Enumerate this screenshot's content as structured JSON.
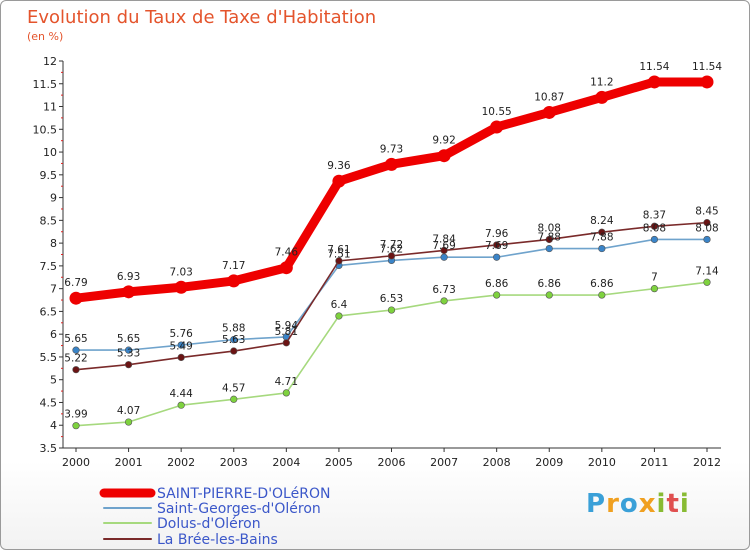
{
  "title": "Evolution du Taux de Taxe d'Habitation",
  "subtitle": "(en %)",
  "logo": {
    "letters": [
      "P",
      "r",
      "o",
      "x",
      "i",
      "t",
      "i"
    ],
    "colors": [
      "#3aa0d8",
      "#f0a020",
      "#3aa0d8",
      "#f0a020",
      "#88bb33",
      "#e05050",
      "#88bb33"
    ]
  },
  "chart_data": {
    "type": "line",
    "x": [
      "2000",
      "2001",
      "2002",
      "2003",
      "2004",
      "2005",
      "2006",
      "2007",
      "2008",
      "2009",
      "2010",
      "2011",
      "2012"
    ],
    "ylim": [
      3.5,
      12
    ],
    "yticks": [
      "3.5",
      "4",
      "4.5",
      "5",
      "5.5",
      "6",
      "6.5",
      "7",
      "7.5",
      "8",
      "8.5",
      "9",
      "9.5",
      "10",
      "10.5",
      "11",
      "11.5",
      "12"
    ],
    "grid": false,
    "legend_position": "bottom-left",
    "series": [
      {
        "name": "SAINT-PIERRE-D'OLéRON",
        "color": "#ee0000",
        "values": [
          6.79,
          6.93,
          7.03,
          7.17,
          7.46,
          9.36,
          9.73,
          9.92,
          10.55,
          10.87,
          11.2,
          11.54,
          11.54
        ],
        "labels": [
          "6.79",
          "6.93",
          "7.03",
          "7.17",
          "7.46",
          "9.36",
          "9.73",
          "9.92",
          "10.55",
          "10.87",
          "11.2",
          "11.54",
          "11.54"
        ]
      },
      {
        "name": "Saint-Georges-d'Oléron",
        "color": "#6fa3cc",
        "marker": "#3a84c8",
        "values": [
          5.65,
          5.65,
          5.76,
          5.88,
          5.94,
          7.51,
          7.62,
          7.69,
          7.69,
          7.88,
          7.88,
          8.08,
          8.08
        ],
        "labels": [
          "5.65",
          "5.65",
          "5.76",
          "5.88",
          "5.94",
          "7.51",
          "7.62",
          "7.69",
          "7.69",
          "7.88",
          "7.88",
          "8.08",
          "8.08"
        ]
      },
      {
        "name": "Dolus-d'Oléron",
        "color": "#a6d97e",
        "marker": "#7ed23e",
        "values": [
          3.99,
          4.07,
          4.44,
          4.57,
          4.71,
          6.4,
          6.53,
          6.73,
          6.86,
          6.86,
          6.86,
          7.0,
          7.14
        ],
        "labels": [
          "3.99",
          "4.07",
          "4.44",
          "4.57",
          "4.71",
          "6.4",
          "6.53",
          "6.73",
          "6.86",
          "6.86",
          "6.86",
          "7",
          "7.14"
        ]
      },
      {
        "name": "La Brée-les-Bains",
        "color": "#7a2a2a",
        "marker": "#6b1414",
        "values": [
          5.22,
          5.33,
          5.49,
          5.63,
          5.81,
          7.61,
          7.72,
          7.84,
          7.96,
          8.08,
          8.24,
          8.37,
          8.45
        ],
        "labels": [
          "5.22",
          "5.33",
          "5.49",
          "5.63",
          "5.81",
          "7.61",
          "7.72",
          "7.84",
          "7.96",
          "8.08",
          "8.24",
          "8.37",
          "8.45"
        ]
      }
    ]
  }
}
